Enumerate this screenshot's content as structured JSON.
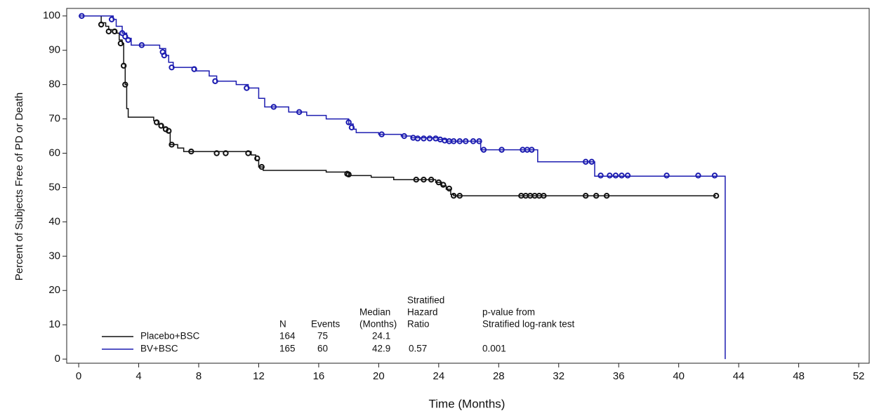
{
  "chart_data": {
    "type": "kaplan-meier",
    "xlabel": "Time (Months)",
    "ylabel": "Percent of Subjects Free of PD or Death",
    "xlim": [
      -0.8,
      52.7
    ],
    "ylim": [
      -1.2,
      102.2
    ],
    "xticks": [
      0,
      4,
      8,
      12,
      16,
      20,
      24,
      28,
      32,
      36,
      40,
      44,
      48,
      52
    ],
    "yticks": [
      0,
      10,
      20,
      30,
      40,
      50,
      60,
      70,
      80,
      90,
      100
    ],
    "series": [
      {
        "name": "Placebo+BSC",
        "color": "#111111",
        "x": [
          0,
          1.5,
          1.8,
          2.0,
          2.5,
          2.7,
          2.9,
          3.0,
          3.1,
          3.2,
          3.3,
          5.0,
          5.3,
          5.6,
          5.9,
          6.1,
          6.6,
          7.0,
          11.5,
          11.8,
          12.0,
          12.3,
          16.5,
          18.0,
          19.5,
          21.0,
          23.8,
          24.2,
          24.5,
          24.8,
          25.0,
          42.5
        ],
        "values": [
          100,
          98,
          97,
          96,
          95,
          93,
          92,
          86,
          80,
          73,
          70.5,
          69.5,
          68.5,
          67.5,
          66,
          62.5,
          61.5,
          60.5,
          59.5,
          58,
          56,
          55,
          54.5,
          53.5,
          53,
          52.3,
          51.5,
          50.5,
          49.5,
          48,
          47.6,
          47.6
        ],
        "censored_x": [
          1.5,
          2.0,
          2.4,
          2.8,
          3.0,
          3.1,
          5.2,
          5.5,
          5.8,
          6.0,
          6.2,
          7.5,
          9.2,
          9.8,
          11.3,
          11.9,
          12.2,
          17.9,
          18.0,
          22.5,
          23.0,
          23.5,
          24.0,
          24.3,
          24.7,
          25.0,
          25.4,
          29.5,
          29.8,
          30.1,
          30.4,
          30.7,
          31.0,
          33.8,
          34.5,
          35.2,
          42.5
        ],
        "censored_values": [
          97.5,
          95.5,
          95.5,
          92,
          85.5,
          80,
          69,
          68,
          67,
          66.5,
          62.5,
          60.5,
          60,
          60,
          60,
          58.5,
          56,
          54,
          53.8,
          52.3,
          52.3,
          52.3,
          51.5,
          50.8,
          49.7,
          47.6,
          47.6,
          47.6,
          47.6,
          47.6,
          47.6,
          47.6,
          47.6,
          47.6,
          47.6,
          47.6,
          47.6
        ]
      },
      {
        "name": "BV+BSC",
        "color": "#1c1cb0",
        "x": [
          0,
          2.3,
          2.5,
          2.9,
          3.2,
          3.5,
          5.4,
          5.8,
          6.0,
          6.3,
          7.8,
          8.7,
          9.2,
          10.5,
          11.3,
          12.0,
          12.4,
          14.0,
          15.2,
          16.5,
          18.0,
          18.3,
          18.5,
          20.0,
          21.5,
          22.2,
          24.0,
          24.5,
          26.8,
          30.6,
          34.4,
          43.1,
          43.1
        ],
        "values": [
          100,
          99,
          97,
          95,
          93.5,
          91.5,
          90.5,
          88.5,
          86.5,
          85,
          84,
          82.5,
          81,
          80,
          79,
          76,
          73.5,
          72,
          71,
          70,
          68.5,
          67,
          66,
          65.5,
          65,
          64.5,
          64,
          63.5,
          61,
          57.5,
          53.3,
          53.3,
          0
        ],
        "censored_x": [
          0.2,
          2.2,
          2.9,
          3.1,
          3.3,
          4.2,
          5.6,
          5.7,
          6.2,
          7.7,
          9.1,
          11.2,
          13.0,
          14.7,
          18.0,
          18.2,
          20.2,
          21.7,
          22.3,
          22.6,
          23.0,
          23.4,
          23.8,
          24.1,
          24.4,
          24.7,
          25.0,
          25.4,
          25.8,
          26.3,
          26.7,
          27.0,
          28.2,
          29.6,
          29.9,
          30.2,
          33.8,
          34.2,
          34.8,
          35.4,
          35.8,
          36.2,
          36.6,
          39.2,
          41.3,
          42.4
        ],
        "censored_values": [
          100,
          99,
          95,
          94,
          93,
          91.5,
          89.5,
          88.5,
          85,
          84.5,
          81,
          79,
          73.5,
          72,
          69,
          67.5,
          65.5,
          65,
          64.5,
          64.3,
          64.3,
          64.3,
          64.3,
          64,
          63.7,
          63.5,
          63.5,
          63.5,
          63.5,
          63.5,
          63.5,
          61,
          61,
          61,
          61,
          61,
          57.5,
          57.5,
          53.5,
          53.5,
          53.5,
          53.5,
          53.5,
          53.5,
          53.5,
          53.5
        ]
      }
    ],
    "stats_table": {
      "headers": [
        [
          "N"
        ],
        [
          "Events"
        ],
        [
          "Median",
          "(Months)"
        ],
        [
          "Stratified",
          "Hazard",
          "Ratio"
        ],
        [
          "p-value from",
          "Stratified log-rank test"
        ]
      ],
      "rows": [
        [
          164,
          75,
          24.1
        ],
        [
          165,
          60,
          42.9,
          0.57,
          0.001
        ]
      ]
    }
  }
}
